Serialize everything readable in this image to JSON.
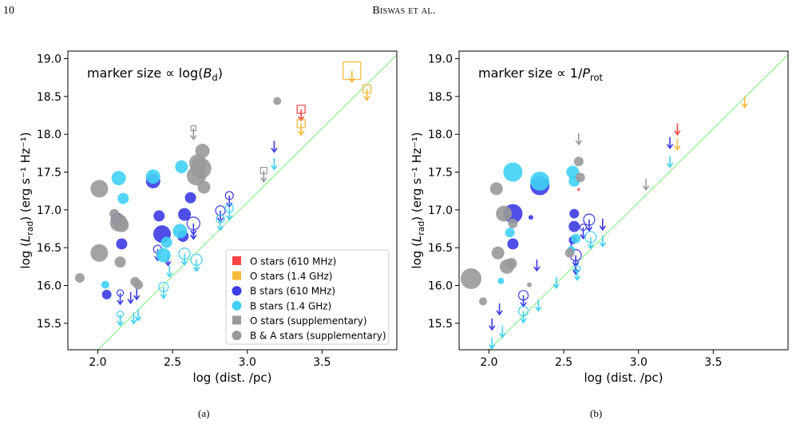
{
  "header": {
    "page_number": "10",
    "running_title": "Biswas et al."
  },
  "subcaptions": [
    "(a)",
    "(b)"
  ],
  "legend": [
    {
      "label": "O stars (610 MHz)",
      "color": "#ff4444",
      "shape": "square"
    },
    {
      "label": "O stars (1.4 GHz)",
      "color": "#f5b93a",
      "shape": "square"
    },
    {
      "label": "B stars (610 MHz)",
      "color": "#3c3ce6",
      "shape": "circle"
    },
    {
      "label": "B stars (1.4 GHz)",
      "color": "#3fd0f5",
      "shape": "circle"
    },
    {
      "label": "O stars (supplementary)",
      "color": "#999999",
      "shape": "square"
    },
    {
      "label": "B & A stars (supplementary)",
      "color": "#999999",
      "shape": "circle"
    }
  ],
  "chart_data": [
    {
      "type": "scatter",
      "annotation": "marker size ∝  log(B_d)",
      "xlabel": "log (dist. /pc)",
      "ylabel": "log (L_rad) (erg s⁻¹ Hz⁻¹)",
      "xlim": [
        1.8,
        4.0
      ],
      "ylim": [
        15.15,
        19.1
      ],
      "xticks": [
        "2.0",
        "2.5",
        "3.0",
        "3.5"
      ],
      "yticks": [
        "15.5",
        "16.0",
        "16.5",
        "17.0",
        "17.5",
        "18.0",
        "18.5",
        "19.0"
      ],
      "reference_line": {
        "color": "#90ee90",
        "points": [
          [
            2.0,
            15.15
          ],
          [
            4.0,
            19.05
          ]
        ]
      },
      "legend_position": "lower-right",
      "grid": false,
      "series": [
        {
          "name": "O stars (610 MHz)",
          "marker": "square",
          "color": "#ff4444",
          "points": [
            [
              3.36,
              18.33,
              5,
              "limit"
            ]
          ]
        },
        {
          "name": "O stars (1.4 GHz)",
          "marker": "square",
          "color": "#f5b93a",
          "points": [
            [
              3.7,
              18.84,
              11,
              "limit"
            ],
            [
              3.36,
              18.14,
              5,
              "limit"
            ],
            [
              3.8,
              18.6,
              5,
              "limit"
            ]
          ]
        },
        {
          "name": "B stars (610 MHz)",
          "marker": "circle",
          "color": "#3c3ce6",
          "points": [
            [
              2.13,
              16.88,
              8,
              "det"
            ],
            [
              2.16,
              16.55,
              7,
              "det"
            ],
            [
              2.37,
              17.38,
              9,
              "det"
            ],
            [
              2.43,
              16.68,
              11,
              "det"
            ],
            [
              2.41,
              16.92,
              7,
              "det"
            ],
            [
              2.58,
              16.94,
              8,
              "det"
            ],
            [
              2.62,
              17.16,
              7,
              "det"
            ],
            [
              2.57,
              16.65,
              7,
              "det"
            ],
            [
              2.06,
              15.88,
              6,
              "det"
            ],
            [
              2.64,
              16.82,
              8,
              "limit"
            ],
            [
              2.82,
              16.99,
              6,
              "limit"
            ],
            [
              2.88,
              17.19,
              5,
              "limit"
            ],
            [
              2.15,
              15.9,
              4,
              "limit"
            ],
            [
              2.4,
              16.48,
              5,
              "limit"
            ],
            [
              2.22,
              15.85,
              0,
              "arrow"
            ],
            [
              2.26,
              15.9,
              0,
              "arrow"
            ],
            [
              3.18,
              17.85,
              0,
              "arrow"
            ],
            [
              2.64,
              16.7,
              0,
              "arrow"
            ],
            [
              2.47,
              16.35,
              0,
              "arrow"
            ]
          ]
        },
        {
          "name": "B stars (1.4 GHz)",
          "marker": "circle",
          "color": "#3fd0f5",
          "points": [
            [
              2.14,
              17.42,
              9,
              "det"
            ],
            [
              2.37,
              17.44,
              9,
              "det"
            ],
            [
              2.56,
              17.57,
              8,
              "det"
            ],
            [
              2.17,
              17.15,
              7,
              "det"
            ],
            [
              2.55,
              16.72,
              9,
              "det"
            ],
            [
              2.44,
              16.4,
              9,
              "det"
            ],
            [
              2.46,
              16.57,
              7,
              "det"
            ],
            [
              2.05,
              16.01,
              5,
              "det"
            ],
            [
              2.58,
              16.42,
              7,
              "limit"
            ],
            [
              2.66,
              16.34,
              7,
              "limit"
            ],
            [
              2.44,
              15.98,
              6,
              "limit"
            ],
            [
              2.15,
              15.62,
              4,
              "limit"
            ],
            [
              2.82,
              16.88,
              5,
              "limit"
            ],
            [
              2.88,
              17.02,
              5,
              "limit"
            ],
            [
              3.18,
              17.62,
              0,
              "arrow"
            ],
            [
              2.27,
              15.62,
              0,
              "arrow"
            ],
            [
              2.24,
              15.58,
              0,
              "arrow"
            ],
            [
              2.48,
              16.2,
              0,
              "arrow"
            ]
          ]
        },
        {
          "name": "O stars (supplementary)",
          "marker": "square",
          "color": "#999999",
          "points": [
            [
              2.64,
              18.08,
              3,
              "limit"
            ],
            [
              3.11,
              17.52,
              4,
              "limit"
            ]
          ]
        },
        {
          "name": "B & A stars (supplementary)",
          "marker": "circle",
          "color": "#999999",
          "points": [
            [
              2.01,
              17.28,
              11,
              "det"
            ],
            [
              2.01,
              16.43,
              11,
              "det"
            ],
            [
              2.14,
              16.83,
              11,
              "det"
            ],
            [
              2.11,
              16.95,
              6,
              "det"
            ],
            [
              2.16,
              16.8,
              9,
              "det"
            ],
            [
              2.15,
              16.31,
              7,
              "det"
            ],
            [
              1.88,
              16.1,
              6,
              "det"
            ],
            [
              2.25,
              16.05,
              6,
              "det"
            ],
            [
              2.27,
              16.01,
              6,
              "det"
            ],
            [
              2.7,
              17.78,
              9,
              "det"
            ],
            [
              2.67,
              17.62,
              11,
              "det"
            ],
            [
              2.69,
              17.55,
              13,
              "det"
            ],
            [
              2.66,
              17.45,
              12,
              "det"
            ],
            [
              2.71,
              17.3,
              8,
              "det"
            ],
            [
              3.2,
              18.44,
              5,
              "det"
            ]
          ]
        }
      ]
    },
    {
      "type": "scatter",
      "annotation": "marker size  ∝  1/P_rot",
      "xlabel": "log (dist. /pc)",
      "ylabel": "log (L_rad) (erg s⁻¹ Hz⁻¹)",
      "xlim": [
        1.8,
        4.0
      ],
      "ylim": [
        15.15,
        19.1
      ],
      "xticks": [
        "2.0",
        "2.5",
        "3.0",
        "3.5"
      ],
      "yticks": [
        "15.5",
        "16.0",
        "16.5",
        "17.0",
        "17.5",
        "18.0",
        "18.5",
        "19.0"
      ],
      "reference_line": {
        "color": "#90ee90",
        "points": [
          [
            2.0,
            15.15
          ],
          [
            4.0,
            19.05
          ]
        ]
      },
      "grid": false,
      "series": [
        {
          "name": "O stars (610 MHz)",
          "marker": "square",
          "color": "#ff4444",
          "points": [
            [
              3.26,
              18.08,
              0,
              "arrow"
            ],
            [
              2.6,
              17.27,
              1.5,
              "det"
            ]
          ]
        },
        {
          "name": "O stars (1.4 GHz)",
          "marker": "square",
          "color": "#f5b93a",
          "points": [
            [
              3.71,
              18.44,
              0,
              "arrow"
            ],
            [
              3.26,
              17.88,
              0,
              "arrow"
            ]
          ]
        },
        {
          "name": "B stars (610 MHz)",
          "marker": "circle",
          "color": "#3c3ce6",
          "points": [
            [
              2.16,
              16.95,
              12,
              "det"
            ],
            [
              2.34,
              17.32,
              12,
              "det"
            ],
            [
              2.16,
              16.55,
              7,
              "det"
            ],
            [
              2.57,
              16.95,
              6,
              "det"
            ],
            [
              2.57,
              16.78,
              7,
              "det"
            ],
            [
              2.56,
              16.6,
              5,
              "det"
            ],
            [
              2.28,
              16.9,
              3,
              "det"
            ],
            [
              2.67,
              16.87,
              7,
              "limit"
            ],
            [
              2.58,
              16.4,
              7,
              "limit"
            ],
            [
              2.23,
              15.87,
              6,
              "limit"
            ],
            [
              2.63,
              16.77,
              4,
              "limit"
            ],
            [
              2.58,
              16.3,
              3,
              "limit"
            ],
            [
              2.02,
              15.5,
              0,
              "arrow"
            ],
            [
              2.07,
              15.7,
              0,
              "arrow"
            ],
            [
              3.21,
              17.9,
              0,
              "arrow"
            ],
            [
              2.32,
              16.28,
              0,
              "arrow"
            ],
            [
              2.76,
              16.82,
              0,
              "arrow"
            ],
            [
              2.55,
              16.52,
              0,
              "arrow"
            ]
          ]
        },
        {
          "name": "B stars (1.4 GHz)",
          "marker": "circle",
          "color": "#3fd0f5",
          "points": [
            [
              2.16,
              17.5,
              12,
              "det"
            ],
            [
              2.34,
              17.38,
              12,
              "det"
            ],
            [
              2.56,
              17.5,
              8,
              "det"
            ],
            [
              2.57,
              17.38,
              7,
              "det"
            ],
            [
              2.14,
              16.7,
              6,
              "det"
            ],
            [
              2.08,
              16.06,
              4,
              "det"
            ],
            [
              2.55,
              16.47,
              5,
              "det"
            ],
            [
              2.58,
              16.62,
              6,
              "det"
            ],
            [
              2.68,
              16.64,
              7,
              "limit"
            ],
            [
              2.23,
              15.66,
              6,
              "limit"
            ],
            [
              2.59,
              16.22,
              4,
              "limit"
            ],
            [
              2.02,
              15.25,
              0,
              "arrow"
            ],
            [
              2.09,
              15.4,
              0,
              "arrow"
            ],
            [
              3.21,
              17.65,
              0,
              "arrow"
            ],
            [
              2.33,
              15.75,
              0,
              "arrow"
            ],
            [
              2.76,
              16.6,
              0,
              "arrow"
            ],
            [
              2.45,
              16.05,
              0,
              "arrow"
            ]
          ]
        },
        {
          "name": "O stars (supplementary)",
          "marker": "square",
          "color": "#999999",
          "points": [
            [
              2.6,
              17.95,
              0,
              "arrow"
            ],
            [
              3.05,
              17.35,
              0,
              "arrow"
            ]
          ]
        },
        {
          "name": "B & A stars (supplementary)",
          "marker": "circle",
          "color": "#999999",
          "points": [
            [
              1.88,
              16.09,
              13,
              "det"
            ],
            [
              2.06,
              16.43,
              8,
              "det"
            ],
            [
              2.05,
              17.28,
              8,
              "det"
            ],
            [
              2.1,
              16.95,
              10,
              "det"
            ],
            [
              2.12,
              16.25,
              9,
              "det"
            ],
            [
              2.16,
              16.82,
              6,
              "det"
            ],
            [
              2.15,
              16.29,
              7,
              "det"
            ],
            [
              1.96,
              15.79,
              5,
              "det"
            ],
            [
              2.6,
              17.64,
              6,
              "det"
            ],
            [
              2.61,
              17.43,
              6,
              "det"
            ],
            [
              2.54,
              16.43,
              6,
              "det"
            ],
            [
              2.27,
              16.01,
              3,
              "det"
            ]
          ]
        }
      ]
    }
  ]
}
